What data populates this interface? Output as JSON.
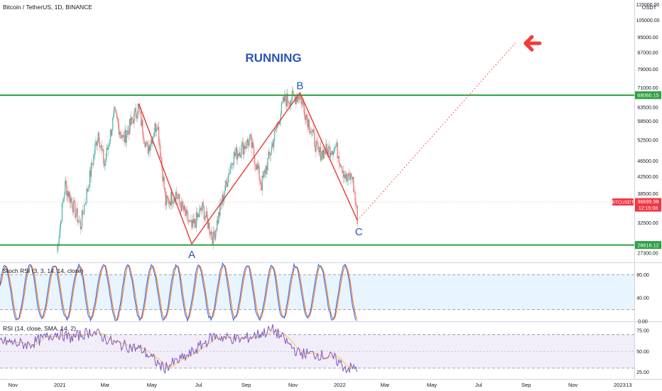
{
  "header": {
    "symbol_title": "Bitcoin / TetherUS, 1D, BINANCE"
  },
  "currency_label": "USDT",
  "annotation_title": "RUNNING",
  "wave_labels": {
    "a": "A",
    "b": "B",
    "c": "C"
  },
  "colors": {
    "up": "#26a69a",
    "down": "#ef5350",
    "wave": "#e53935",
    "level": "#2ea043",
    "label": "#2a55b8",
    "projection": "#f0605a",
    "arrow": "#f23b3b",
    "stoch_k": "#2962ff",
    "stoch_d": "#ff6d00",
    "rsi": "#7e57c2",
    "rsi_ma": "#f2c94c"
  },
  "price_badge": {
    "symbol": "BTCUSDT",
    "value": "36699.98",
    "countdown": "12:15:08"
  },
  "levels": [
    {
      "name": "resistance",
      "value": 68060.15,
      "label": "68060.15"
    },
    {
      "name": "support",
      "value": 28616.12,
      "label": "28616.12"
    }
  ],
  "chart_data": {
    "type": "candlestick",
    "title": "Bitcoin / TetherUS, 1D, BINANCE",
    "y_scale": "log",
    "ylim": [
      26000,
      118000
    ],
    "xlim": [
      "2020-10-15",
      "2023-01-20"
    ],
    "y_ticks": [
      "115000.00",
      "105000.00",
      "95000.00",
      "87000.00",
      "79000.00",
      "71000.00",
      "63500.00",
      "58500.00",
      "52500.00",
      "46500.00",
      "42500.00",
      "38500.00",
      "32500.00",
      "29000.00",
      "27300.00"
    ],
    "x_ticks": [
      {
        "label": "Nov",
        "date": "2020-11-01"
      },
      {
        "label": "2021",
        "date": "2021-01-01"
      },
      {
        "label": "Mar",
        "date": "2021-03-01"
      },
      {
        "label": "May",
        "date": "2021-05-01"
      },
      {
        "label": "Jul",
        "date": "2021-07-01"
      },
      {
        "label": "Sep",
        "date": "2021-09-01"
      },
      {
        "label": "Nov",
        "date": "2021-11-01"
      },
      {
        "label": "2022",
        "date": "2022-01-01"
      },
      {
        "label": "Mar",
        "date": "2022-03-01"
      },
      {
        "label": "May",
        "date": "2022-05-01"
      },
      {
        "label": "Jul",
        "date": "2022-07-01"
      },
      {
        "label": "Sep",
        "date": "2022-09-01"
      },
      {
        "label": "Nov",
        "date": "2022-11-01"
      },
      {
        "label": "2023",
        "date": "2023-01-01"
      },
      {
        "label": "13",
        "date": "2023-01-13"
      }
    ],
    "close_path": [
      [
        "2020-12-28",
        27500
      ],
      [
        "2021-01-08",
        40500
      ],
      [
        "2021-01-28",
        32000
      ],
      [
        "2021-02-20",
        55000
      ],
      [
        "2021-02-28",
        45500
      ],
      [
        "2021-03-13",
        61000
      ],
      [
        "2021-03-25",
        52500
      ],
      [
        "2021-04-13",
        63500
      ],
      [
        "2021-04-25",
        49500
      ],
      [
        "2021-05-08",
        58500
      ],
      [
        "2021-05-19",
        36500
      ],
      [
        "2021-06-01",
        38500
      ],
      [
        "2021-06-22",
        31500
      ],
      [
        "2021-07-06",
        35500
      ],
      [
        "2021-07-20",
        29700
      ],
      [
        "2021-08-14",
        47500
      ],
      [
        "2021-09-06",
        52500
      ],
      [
        "2021-09-21",
        40500
      ],
      [
        "2021-10-20",
        66000
      ],
      [
        "2021-11-10",
        68000
      ],
      [
        "2021-11-26",
        54500
      ],
      [
        "2021-12-04",
        48500
      ],
      [
        "2021-12-27",
        50500
      ],
      [
        "2022-01-10",
        41500
      ],
      [
        "2022-01-17",
        42800
      ],
      [
        "2022-01-24",
        33500
      ]
    ],
    "waves": [
      {
        "label": "",
        "date": "2021-04-14",
        "price": 64800
      },
      {
        "label": "A",
        "date": "2021-06-22",
        "price": 28800
      },
      {
        "label": "B",
        "date": "2021-11-10",
        "price": 69000
      },
      {
        "label": "C",
        "date": "2022-01-24",
        "price": 33000
      }
    ],
    "projection": [
      [
        "2022-01-24",
        33000
      ],
      [
        "2022-08-20",
        93000
      ]
    ],
    "last_price": 36699.98,
    "stoch_rsi": {
      "title": "Stoch RSI (3, 3, 14, 14, close)",
      "ylim": [
        0,
        100
      ],
      "band": [
        20,
        80
      ],
      "y_ticks": [
        "80.00",
        "40.00",
        "0.00"
      ]
    },
    "rsi": {
      "title": "RSI (14, close, SMA, 14, 2)",
      "ylim": [
        18,
        85
      ],
      "band": [
        30,
        70
      ],
      "y_ticks": [
        "75.00",
        "50.00",
        "25.00"
      ]
    }
  }
}
